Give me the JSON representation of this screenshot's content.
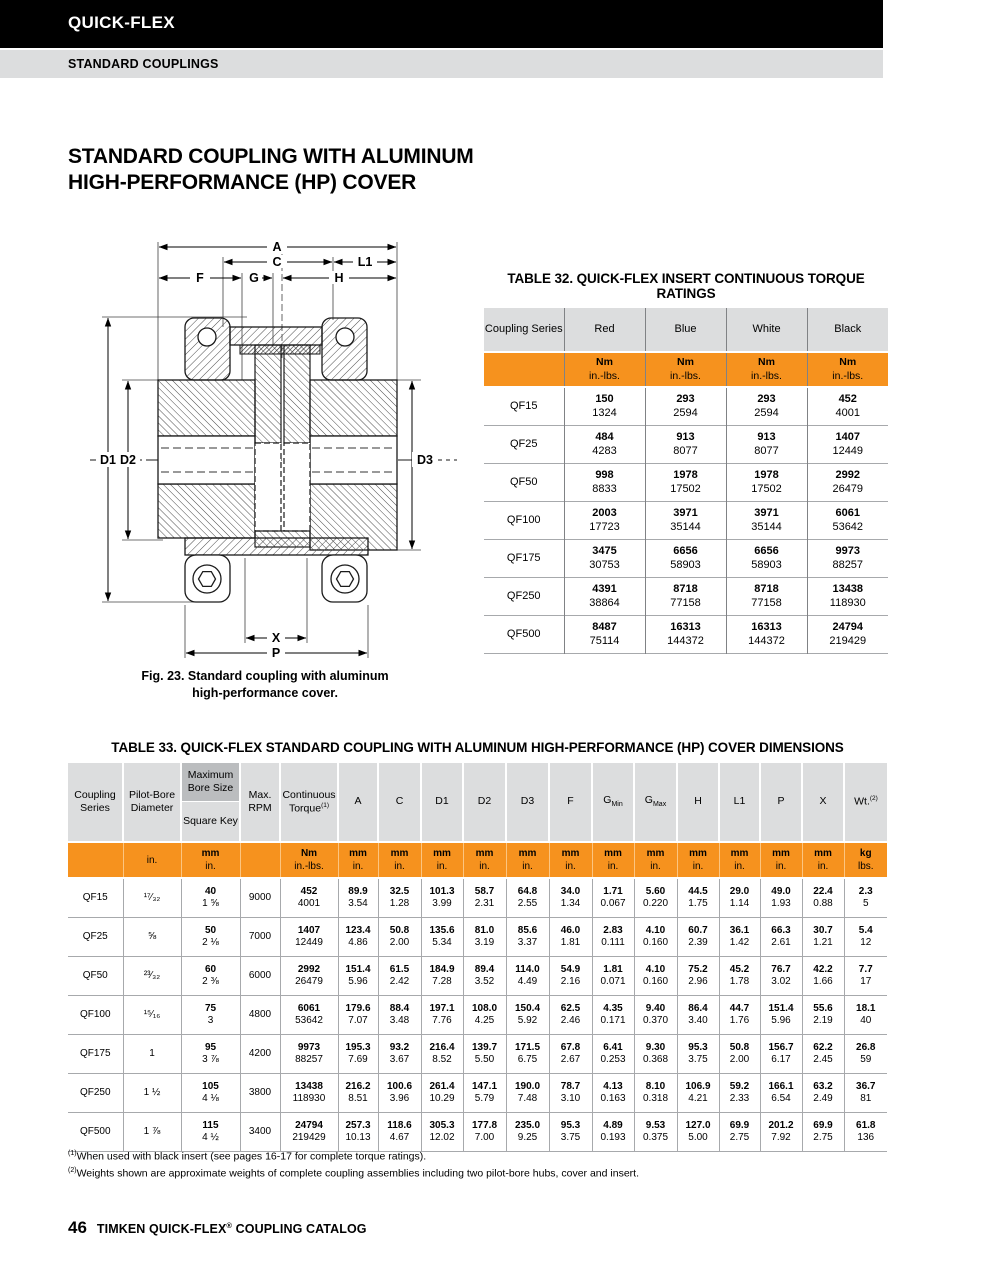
{
  "header": {
    "brand": "QUICK-FLEX",
    "section": "STANDARD COUPLINGS"
  },
  "page_title_line1": "STANDARD COUPLING WITH ALUMINUM",
  "page_title_line2": "HIGH-PERFORMANCE (HP) COVER",
  "colors": {
    "orange": "#F6921E",
    "header_gray": "#DCDDDE",
    "dark_gray": "#BBBDBF",
    "banner_black": "#000000"
  },
  "figure": {
    "caption_line1": "Fig. 23. Standard coupling with aluminum",
    "caption_line2": "high-performance cover.",
    "dims": {
      "a": "A",
      "c": "C",
      "l1": "L1",
      "f": "F",
      "g": "G",
      "h": "H",
      "d1": "D1",
      "d2": "D2",
      "d3": "D3",
      "x": "X",
      "p": "P"
    }
  },
  "table32": {
    "title": "TABLE 32. QUICK-FLEX INSERT CONTINUOUS TORQUE RATINGS",
    "col1_header": "Coupling Series",
    "color_headers": [
      "Red",
      "Blue",
      "White",
      "Black"
    ],
    "unit_top": "Nm",
    "unit_bottom": "in.-lbs.",
    "rows": [
      {
        "series": "QF15",
        "values": [
          [
            "150",
            "1324"
          ],
          [
            "293",
            "2594"
          ],
          [
            "293",
            "2594"
          ],
          [
            "452",
            "4001"
          ]
        ]
      },
      {
        "series": "QF25",
        "values": [
          [
            "484",
            "4283"
          ],
          [
            "913",
            "8077"
          ],
          [
            "913",
            "8077"
          ],
          [
            "1407",
            "12449"
          ]
        ]
      },
      {
        "series": "QF50",
        "values": [
          [
            "998",
            "8833"
          ],
          [
            "1978",
            "17502"
          ],
          [
            "1978",
            "17502"
          ],
          [
            "2992",
            "26479"
          ]
        ]
      },
      {
        "series": "QF100",
        "values": [
          [
            "2003",
            "17723"
          ],
          [
            "3971",
            "35144"
          ],
          [
            "3971",
            "35144"
          ],
          [
            "6061",
            "53642"
          ]
        ]
      },
      {
        "series": "QF175",
        "values": [
          [
            "3475",
            "30753"
          ],
          [
            "6656",
            "58903"
          ],
          [
            "6656",
            "58903"
          ],
          [
            "9973",
            "88257"
          ]
        ]
      },
      {
        "series": "QF250",
        "values": [
          [
            "4391",
            "38864"
          ],
          [
            "8718",
            "77158"
          ],
          [
            "8718",
            "77158"
          ],
          [
            "13438",
            "118930"
          ]
        ]
      },
      {
        "series": "QF500",
        "values": [
          [
            "8487",
            "75114"
          ],
          [
            "16313",
            "144372"
          ],
          [
            "16313",
            "144372"
          ],
          [
            "24794",
            "219429"
          ]
        ]
      }
    ]
  },
  "table33": {
    "title": "TABLE 33. QUICK-FLEX STANDARD COUPLING WITH ALUMINUM HIGH-PERFORMANCE (HP) COVER DIMENSIONS",
    "headers": {
      "series": "Coupling Series",
      "pilot": "Pilot-Bore Diameter",
      "bore_top": "Maximum Bore Size",
      "bore_bottom": "Square Key",
      "rpm": "Max. RPM",
      "torque": "Continuous Torque",
      "torque_sup": "(1)",
      "a": "A",
      "c": "C",
      "d1": "D1",
      "d2": "D2",
      "d3": "D3",
      "f": "F",
      "g_base": "G",
      "g_min_sub": "Min",
      "g_max_sub": "Max",
      "h": "H",
      "l1": "L1",
      "p": "P",
      "x": "X",
      "wt": "Wt.",
      "wt_sup": "(2)"
    },
    "units": {
      "pilot": "in.",
      "bore": [
        "mm",
        "in."
      ],
      "torque": [
        "Nm",
        "in.-lbs."
      ],
      "dim": [
        "mm",
        "in."
      ],
      "wt": [
        "kg",
        "lbs."
      ]
    },
    "rows": [
      {
        "series": "QF15",
        "pilot": "¹⁷⁄₃₂",
        "bore": [
          "40",
          "1 ⅝"
        ],
        "rpm": "9000",
        "cells": [
          [
            "452",
            "4001"
          ],
          [
            "89.9",
            "3.54"
          ],
          [
            "32.5",
            "1.28"
          ],
          [
            "101.3",
            "3.99"
          ],
          [
            "58.7",
            "2.31"
          ],
          [
            "64.8",
            "2.55"
          ],
          [
            "34.0",
            "1.34"
          ],
          [
            "1.71",
            "0.067"
          ],
          [
            "5.60",
            "0.220"
          ],
          [
            "44.5",
            "1.75"
          ],
          [
            "29.0",
            "1.14"
          ],
          [
            "49.0",
            "1.93"
          ],
          [
            "22.4",
            "0.88"
          ],
          [
            "2.3",
            "5"
          ]
        ]
      },
      {
        "series": "QF25",
        "pilot": "⅝",
        "bore": [
          "50",
          "2 ⅛"
        ],
        "rpm": "7000",
        "cells": [
          [
            "1407",
            "12449"
          ],
          [
            "123.4",
            "4.86"
          ],
          [
            "50.8",
            "2.00"
          ],
          [
            "135.6",
            "5.34"
          ],
          [
            "81.0",
            "3.19"
          ],
          [
            "85.6",
            "3.37"
          ],
          [
            "46.0",
            "1.81"
          ],
          [
            "2.83",
            "0.111"
          ],
          [
            "4.10",
            "0.160"
          ],
          [
            "60.7",
            "2.39"
          ],
          [
            "36.1",
            "1.42"
          ],
          [
            "66.3",
            "2.61"
          ],
          [
            "30.7",
            "1.21"
          ],
          [
            "5.4",
            "12"
          ]
        ]
      },
      {
        "series": "QF50",
        "pilot": "²³⁄₃₂",
        "bore": [
          "60",
          "2 ⅜"
        ],
        "rpm": "6000",
        "cells": [
          [
            "2992",
            "26479"
          ],
          [
            "151.4",
            "5.96"
          ],
          [
            "61.5",
            "2.42"
          ],
          [
            "184.9",
            "7.28"
          ],
          [
            "89.4",
            "3.52"
          ],
          [
            "114.0",
            "4.49"
          ],
          [
            "54.9",
            "2.16"
          ],
          [
            "1.81",
            "0.071"
          ],
          [
            "4.10",
            "0.160"
          ],
          [
            "75.2",
            "2.96"
          ],
          [
            "45.2",
            "1.78"
          ],
          [
            "76.7",
            "3.02"
          ],
          [
            "42.2",
            "1.66"
          ],
          [
            "7.7",
            "17"
          ]
        ]
      },
      {
        "series": "QF100",
        "pilot": "¹⁵⁄₁₆",
        "bore": [
          "75",
          "3"
        ],
        "rpm": "4800",
        "cells": [
          [
            "6061",
            "53642"
          ],
          [
            "179.6",
            "7.07"
          ],
          [
            "88.4",
            "3.48"
          ],
          [
            "197.1",
            "7.76"
          ],
          [
            "108.0",
            "4.25"
          ],
          [
            "150.4",
            "5.92"
          ],
          [
            "62.5",
            "2.46"
          ],
          [
            "4.35",
            "0.171"
          ],
          [
            "9.40",
            "0.370"
          ],
          [
            "86.4",
            "3.40"
          ],
          [
            "44.7",
            "1.76"
          ],
          [
            "151.4",
            "5.96"
          ],
          [
            "55.6",
            "2.19"
          ],
          [
            "18.1",
            "40"
          ]
        ]
      },
      {
        "series": "QF175",
        "pilot": "1",
        "bore": [
          "95",
          "3 ⅞"
        ],
        "rpm": "4200",
        "cells": [
          [
            "9973",
            "88257"
          ],
          [
            "195.3",
            "7.69"
          ],
          [
            "93.2",
            "3.67"
          ],
          [
            "216.4",
            "8.52"
          ],
          [
            "139.7",
            "5.50"
          ],
          [
            "171.5",
            "6.75"
          ],
          [
            "67.8",
            "2.67"
          ],
          [
            "6.41",
            "0.253"
          ],
          [
            "9.30",
            "0.368"
          ],
          [
            "95.3",
            "3.75"
          ],
          [
            "50.8",
            "2.00"
          ],
          [
            "156.7",
            "6.17"
          ],
          [
            "62.2",
            "2.45"
          ],
          [
            "26.8",
            "59"
          ]
        ]
      },
      {
        "series": "QF250",
        "pilot": "1 ½",
        "bore": [
          "105",
          "4 ⅛"
        ],
        "rpm": "3800",
        "cells": [
          [
            "13438",
            "118930"
          ],
          [
            "216.2",
            "8.51"
          ],
          [
            "100.6",
            "3.96"
          ],
          [
            "261.4",
            "10.29"
          ],
          [
            "147.1",
            "5.79"
          ],
          [
            "190.0",
            "7.48"
          ],
          [
            "78.7",
            "3.10"
          ],
          [
            "4.13",
            "0.163"
          ],
          [
            "8.10",
            "0.318"
          ],
          [
            "106.9",
            "4.21"
          ],
          [
            "59.2",
            "2.33"
          ],
          [
            "166.1",
            "6.54"
          ],
          [
            "63.2",
            "2.49"
          ],
          [
            "36.7",
            "81"
          ]
        ]
      },
      {
        "series": "QF500",
        "pilot": "1 ⅞",
        "bore": [
          "115",
          "4 ½"
        ],
        "rpm": "3400",
        "cells": [
          [
            "24794",
            "219429"
          ],
          [
            "257.3",
            "10.13"
          ],
          [
            "118.6",
            "4.67"
          ],
          [
            "305.3",
            "12.02"
          ],
          [
            "177.8",
            "7.00"
          ],
          [
            "235.0",
            "9.25"
          ],
          [
            "95.3",
            "3.75"
          ],
          [
            "4.89",
            "0.193"
          ],
          [
            "9.53",
            "0.375"
          ],
          [
            "127.0",
            "5.00"
          ],
          [
            "69.9",
            "2.75"
          ],
          [
            "201.2",
            "7.92"
          ],
          [
            "69.9",
            "2.75"
          ],
          [
            "61.8",
            "136"
          ]
        ]
      }
    ]
  },
  "footnotes": [
    {
      "sup": "(1)",
      "text": "When used with black insert (see pages 16-17 for complete torque ratings)."
    },
    {
      "sup": "(2)",
      "text": "Weights shown are approximate weights of complete coupling assemblies including two pilot-bore hubs, cover and insert."
    }
  ],
  "footer": {
    "page_number": "46",
    "catalog_pre": "TIMKEN QUICK-FLEX",
    "reg": "®",
    "catalog_post": " COUPLING CATALOG"
  }
}
